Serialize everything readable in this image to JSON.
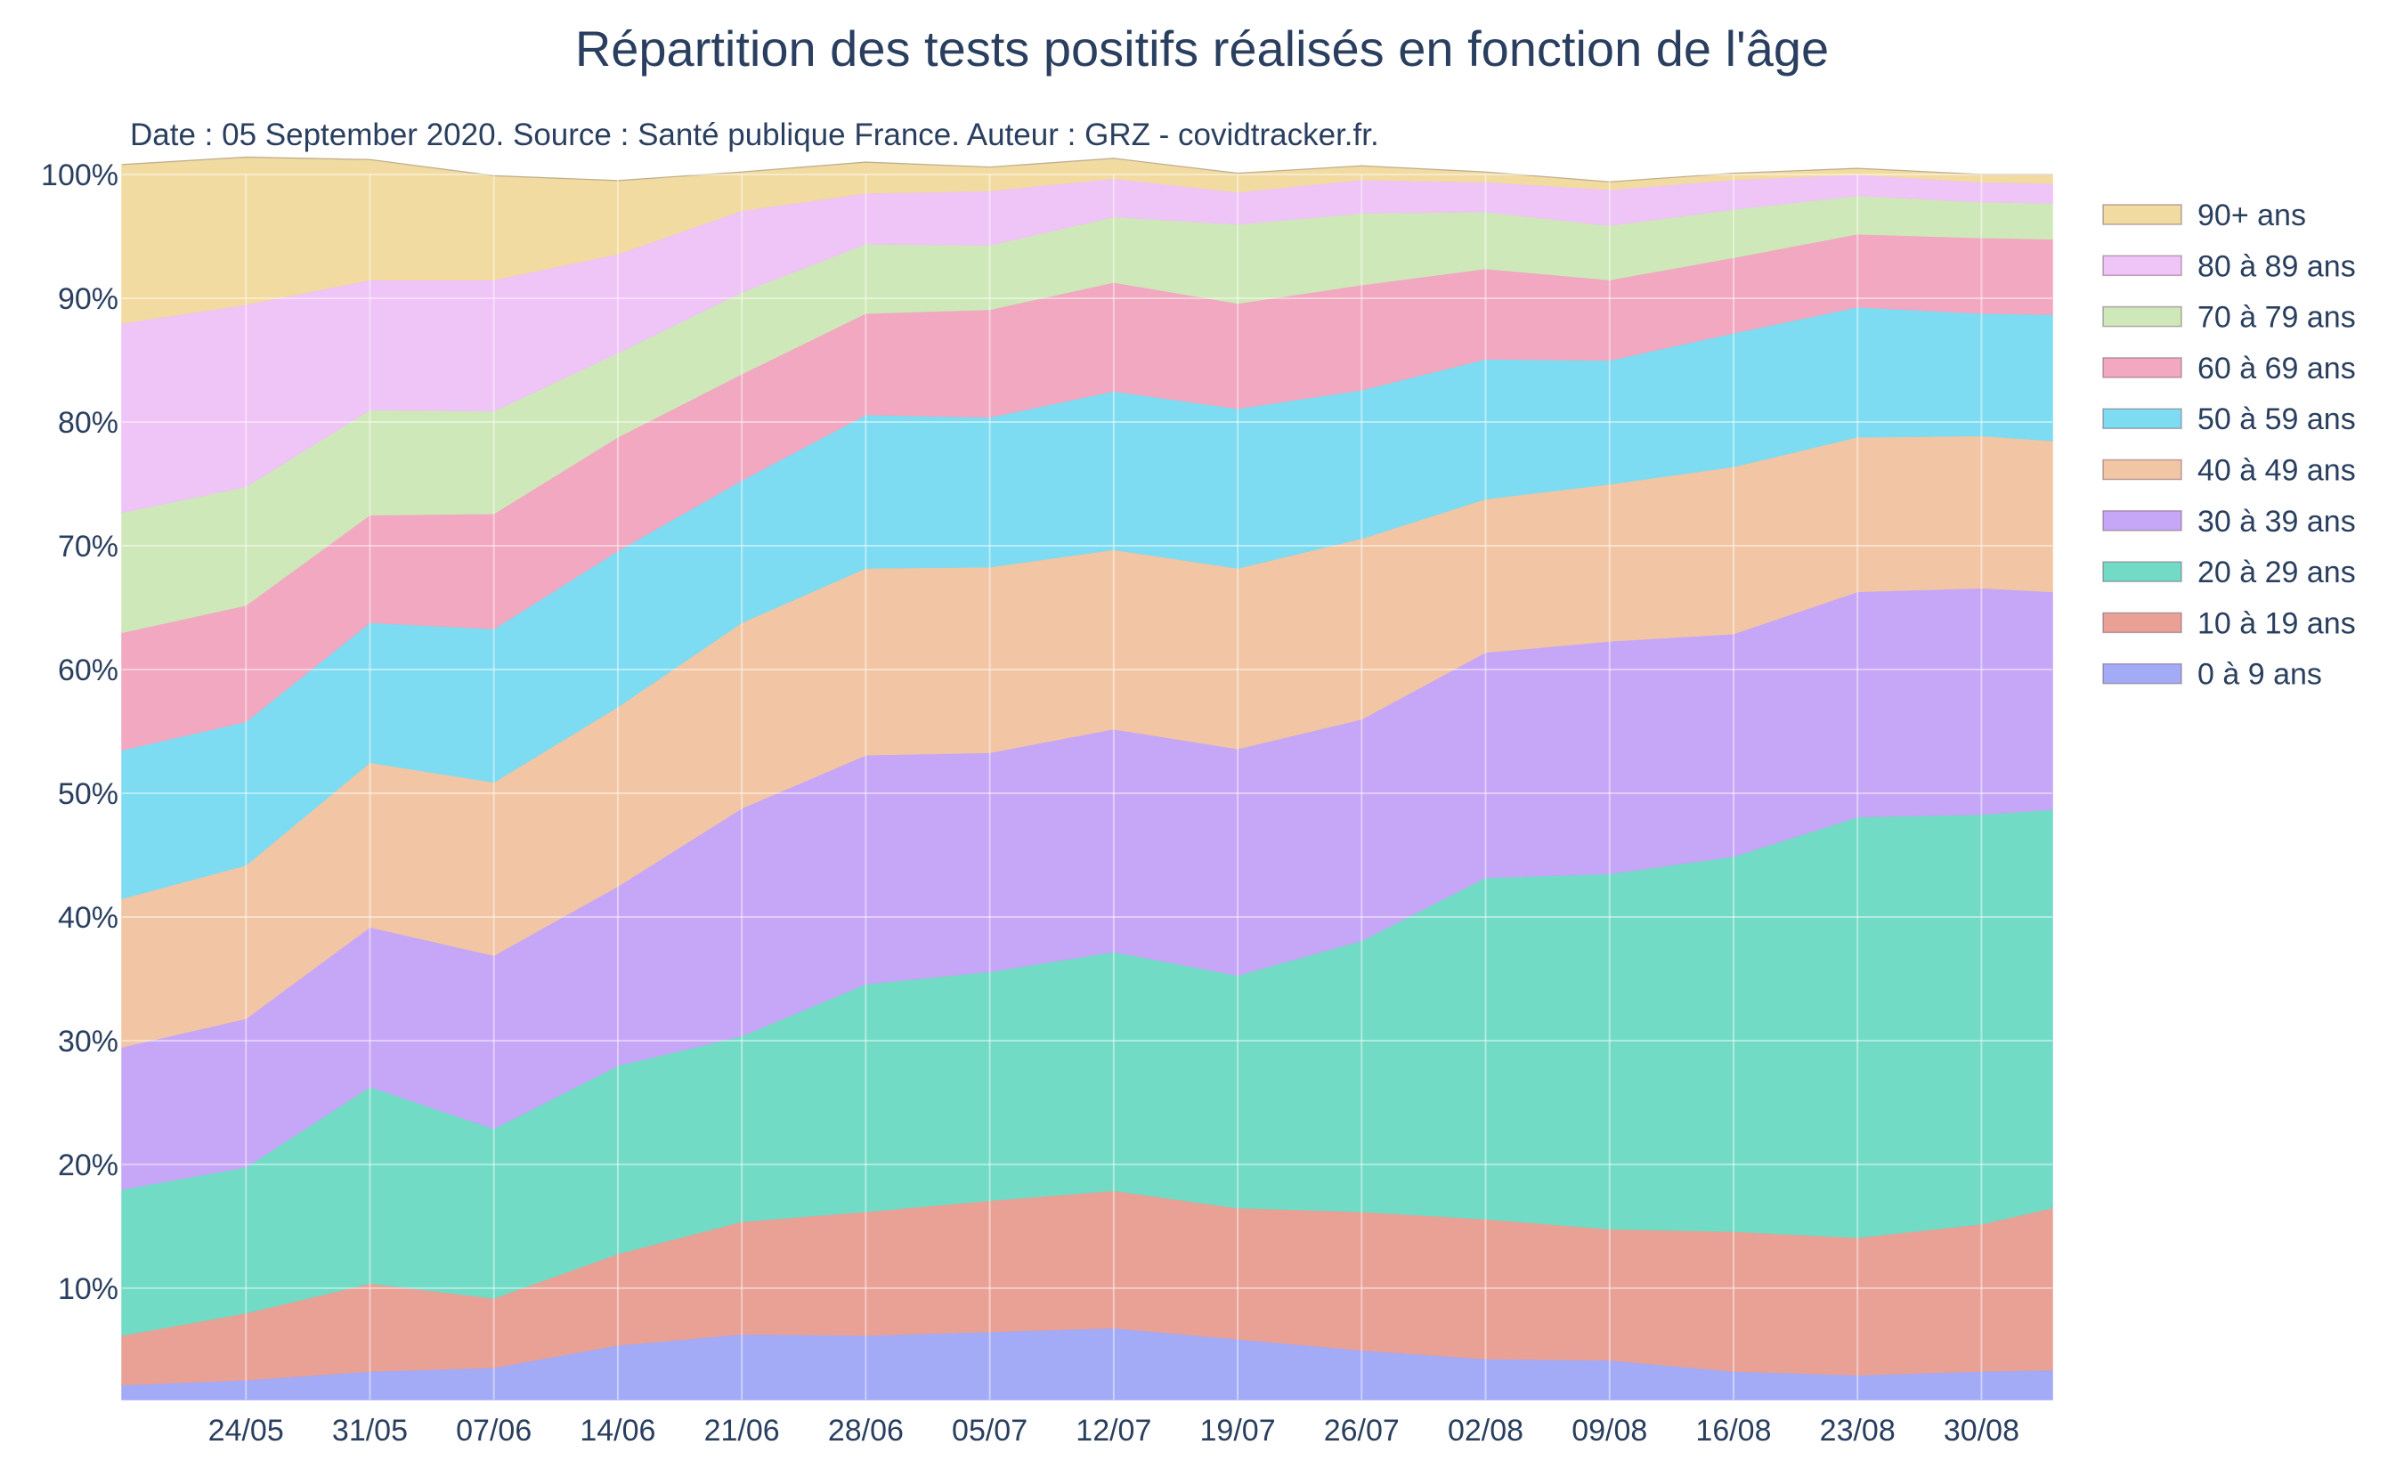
{
  "chart_data": {
    "type": "area",
    "stacked": true,
    "normalized": true,
    "title": "Répartition des tests positifs réalisés en fonction de l'âge",
    "subtitle": "Date : 05 September 2020. Source : Santé publique France. Auteur : GRZ - covidtracker.fr.",
    "xlabel": "",
    "ylabel": "",
    "x_start": "2020-05-17",
    "x_end": "2020-09-03",
    "x_tick_labels": [
      "24/05",
      "31/05",
      "07/06",
      "14/06",
      "21/06",
      "28/06",
      "05/07",
      "12/07",
      "19/07",
      "26/07",
      "02/08",
      "09/08",
      "16/08",
      "23/08",
      "30/08"
    ],
    "y_tick_labels": [
      "10%",
      "20%",
      "30%",
      "40%",
      "50%",
      "60%",
      "70%",
      "80%",
      "90%",
      "100%"
    ],
    "ylim": [
      1,
      100
    ],
    "grid": true,
    "legend_position": "right",
    "x": [
      "2020-05-17",
      "2020-05-24",
      "2020-05-31",
      "2020-06-07",
      "2020-06-14",
      "2020-06-21",
      "2020-06-28",
      "2020-07-05",
      "2020-07-12",
      "2020-07-19",
      "2020-07-26",
      "2020-08-02",
      "2020-08-09",
      "2020-08-16",
      "2020-08-23",
      "2020-08-30",
      "2020-09-03"
    ],
    "series": [
      {
        "name": "0 à 9 ans",
        "color": "#a3aaf6",
        "values": [
          2.2,
          2.6,
          3.3,
          3.6,
          5.4,
          6.3,
          6.2,
          6.5,
          6.8,
          5.9,
          5.0,
          4.3,
          4.2,
          3.3,
          3.0,
          3.3,
          3.4
        ]
      },
      {
        "name": "10 à 19 ans",
        "color": "#e9a196",
        "values": [
          4.0,
          5.4,
          7.1,
          5.6,
          7.4,
          9.1,
          10.0,
          10.6,
          11.1,
          10.6,
          11.2,
          11.3,
          10.6,
          11.3,
          11.1,
          11.9,
          13.1
        ]
      },
      {
        "name": "20 à 29 ans",
        "color": "#72dbc5",
        "values": [
          11.8,
          11.8,
          15.9,
          13.7,
          15.2,
          15.0,
          18.4,
          18.5,
          19.3,
          18.8,
          21.9,
          27.6,
          28.7,
          30.3,
          34.0,
          33.1,
          32.2
        ]
      },
      {
        "name": "30 à 39 ans",
        "color": "#c6a6f6",
        "values": [
          11.5,
          12.0,
          12.9,
          14.0,
          14.5,
          18.4,
          18.5,
          17.7,
          18.0,
          18.3,
          17.9,
          18.2,
          18.8,
          18.0,
          18.2,
          18.3,
          17.6
        ]
      },
      {
        "name": "40 à 49 ans",
        "color": "#f2c6a4",
        "values": [
          12.0,
          12.4,
          13.3,
          14.0,
          14.5,
          15.0,
          15.1,
          15.0,
          14.5,
          14.6,
          14.6,
          12.4,
          12.7,
          13.5,
          12.5,
          12.3,
          12.2
        ]
      },
      {
        "name": "50 à 59 ans",
        "color": "#7edcf2",
        "values": [
          12.0,
          11.6,
          11.3,
          12.4,
          12.6,
          11.5,
          12.4,
          12.1,
          12.8,
          12.9,
          12.0,
          11.3,
          10.0,
          10.8,
          10.5,
          9.9,
          10.2
        ]
      },
      {
        "name": "60 à 69 ans",
        "color": "#f1a8c0",
        "values": [
          9.5,
          9.4,
          8.7,
          9.3,
          9.2,
          8.6,
          8.2,
          8.7,
          8.8,
          8.5,
          8.5,
          7.3,
          6.5,
          6.1,
          5.9,
          6.1,
          6.1
        ]
      },
      {
        "name": "70 à 79 ans",
        "color": "#cfe8b9",
        "values": [
          9.7,
          9.6,
          8.5,
          8.3,
          6.8,
          6.6,
          5.6,
          5.2,
          5.3,
          6.4,
          5.8,
          4.6,
          4.4,
          3.9,
          3.1,
          2.9,
          2.9
        ]
      },
      {
        "name": "80 à 89 ans",
        "color": "#efc4f6",
        "values": [
          15.3,
          14.7,
          10.5,
          10.6,
          8.0,
          6.6,
          4.1,
          4.4,
          3.1,
          2.6,
          2.7,
          2.4,
          2.9,
          2.4,
          1.7,
          1.6,
          1.6
        ]
      },
      {
        "name": "90+ ans",
        "color": "#f2dba1",
        "values": [
          12.8,
          11.9,
          9.7,
          8.4,
          5.9,
          3.1,
          2.5,
          1.9,
          1.6,
          1.5,
          1.1,
          0.8,
          0.6,
          0.5,
          0.5,
          0.6,
          0.7
        ]
      }
    ]
  }
}
